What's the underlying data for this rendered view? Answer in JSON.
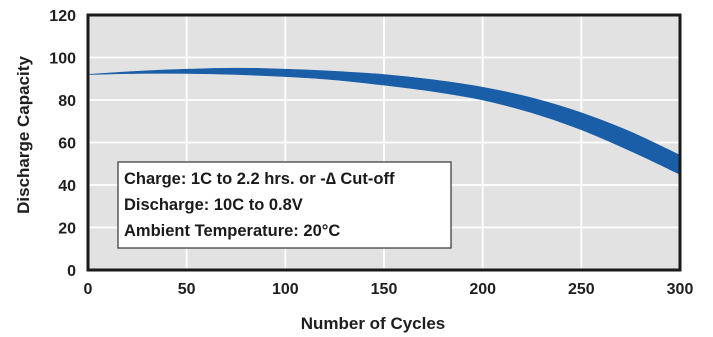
{
  "chart_data": {
    "type": "area",
    "title": "",
    "xlabel": "Number of Cycles",
    "ylabel": "Discharge Capacity",
    "xlim": [
      0,
      300
    ],
    "ylim": [
      0,
      120
    ],
    "x_ticks": [
      0,
      50,
      100,
      150,
      200,
      250,
      300
    ],
    "y_ticks": [
      0,
      20,
      40,
      60,
      80,
      100,
      120
    ],
    "grid": true,
    "legend": "none",
    "series": [
      {
        "fill_color": "#1a5ea8",
        "points": [
          {
            "x": 0,
            "upper": 92,
            "lower": 92
          },
          {
            "x": 25,
            "upper": 93.5,
            "lower": 92.5
          },
          {
            "x": 50,
            "upper": 94.5,
            "lower": 92.5
          },
          {
            "x": 75,
            "upper": 95,
            "lower": 92
          },
          {
            "x": 100,
            "upper": 94.5,
            "lower": 91
          },
          {
            "x": 125,
            "upper": 93.5,
            "lower": 89.5
          },
          {
            "x": 150,
            "upper": 92,
            "lower": 87
          },
          {
            "x": 175,
            "upper": 89.5,
            "lower": 84
          },
          {
            "x": 200,
            "upper": 86,
            "lower": 80
          },
          {
            "x": 225,
            "upper": 81,
            "lower": 74
          },
          {
            "x": 250,
            "upper": 74,
            "lower": 66
          },
          {
            "x": 275,
            "upper": 65,
            "lower": 56
          },
          {
            "x": 300,
            "upper": 54,
            "lower": 45
          }
        ]
      }
    ],
    "annotation": {
      "lines": [
        "Charge: 1C to 2.2 hrs. or -∆ Cut-off",
        "Discharge: 10C to 0.8V",
        "Ambient Temperature: 20°C"
      ]
    }
  }
}
